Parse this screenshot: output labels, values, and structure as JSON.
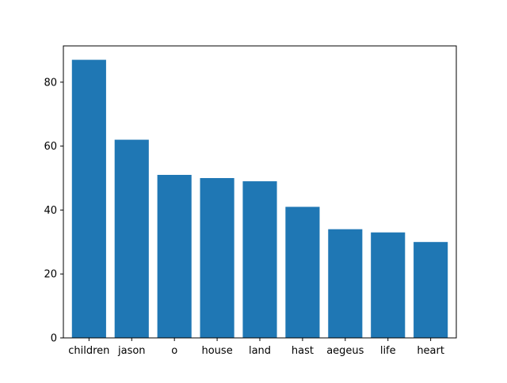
{
  "chart_data": {
    "type": "bar",
    "title": "",
    "xlabel": "",
    "ylabel": "",
    "categories": [
      "children",
      "jason",
      "o",
      "house",
      "land",
      "hast",
      "aegeus",
      "life",
      "heart"
    ],
    "values": [
      87,
      62,
      51,
      50,
      49,
      41,
      34,
      33,
      30
    ],
    "ylim": [
      0,
      91.35
    ],
    "yticks": [
      0,
      20,
      40,
      60,
      80
    ],
    "grid": false,
    "bar_color": "#1f77b4"
  }
}
